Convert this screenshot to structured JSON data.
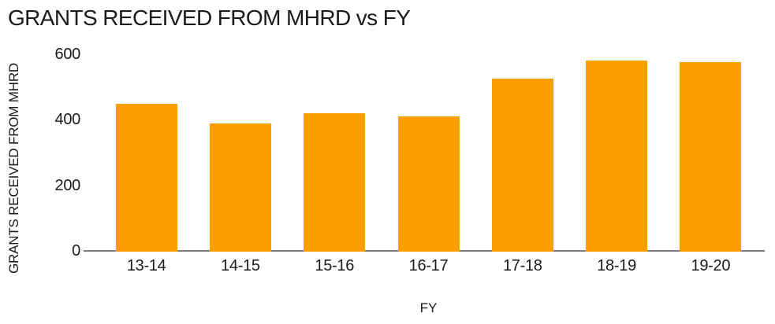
{
  "chart_data": {
    "type": "bar",
    "title": "GRANTS RECEIVED FROM MHRD vs FY",
    "xlabel": "FY",
    "ylabel": "GRANTS RECEIVED FROM MHRD",
    "categories": [
      "13-14",
      "14-15",
      "15-16",
      "16-17",
      "17-18",
      "18-19",
      "19-20"
    ],
    "values": [
      448,
      390,
      420,
      410,
      525,
      580,
      576
    ],
    "ylim": [
      0,
      600
    ],
    "yticks": [
      0,
      200,
      400,
      600
    ],
    "grid": false,
    "legend": false,
    "bar_color": "#FF9E00",
    "axis_line_color": "#7b7b7b",
    "text_color": "#1a1a1a",
    "background_color": "#ffffff"
  }
}
